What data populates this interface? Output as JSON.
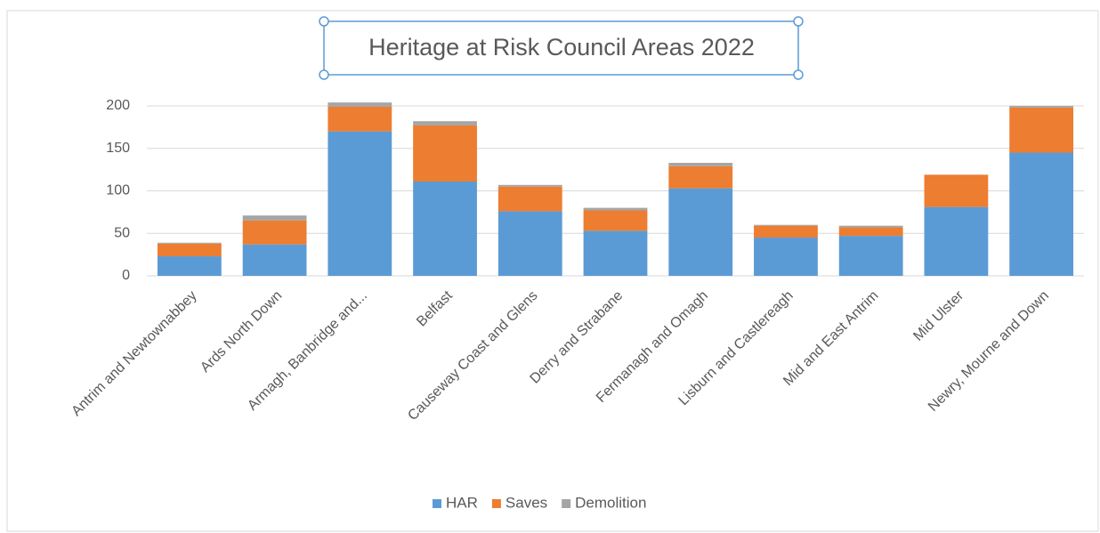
{
  "chart_data": {
    "type": "stacked_bar",
    "title": "Heritage at Risk Council Areas 2022",
    "categories": [
      "Antrim and Newtownabbey",
      "Ards North Down",
      "Armagh, Banbridge and...",
      "Belfast",
      "Causeway Coast and Glens",
      "Derry and Strabane",
      "Fermanagh and Omagh",
      "Lisburn and Castlereagh",
      "Mid and East Antrim",
      "Mid Ulster",
      "Newry, Mourne and Down"
    ],
    "series": [
      {
        "name": "HAR",
        "color": "#5b9bd5",
        "values": [
          23,
          37,
          170,
          111,
          76,
          53,
          103,
          45,
          47,
          81,
          145
        ]
      },
      {
        "name": "Saves",
        "color": "#ed7d31",
        "values": [
          15,
          28,
          29,
          66,
          29,
          24,
          26,
          14,
          10,
          38,
          53
        ]
      },
      {
        "name": "Demolition",
        "color": "#a5a5a5",
        "values": [
          1,
          6,
          5,
          5,
          2,
          3,
          4,
          1,
          2,
          0,
          2
        ]
      }
    ],
    "ylim": [
      0,
      200
    ],
    "yticks": [
      0,
      50,
      100,
      150,
      200
    ],
    "grid": true,
    "legend": "bottom"
  }
}
